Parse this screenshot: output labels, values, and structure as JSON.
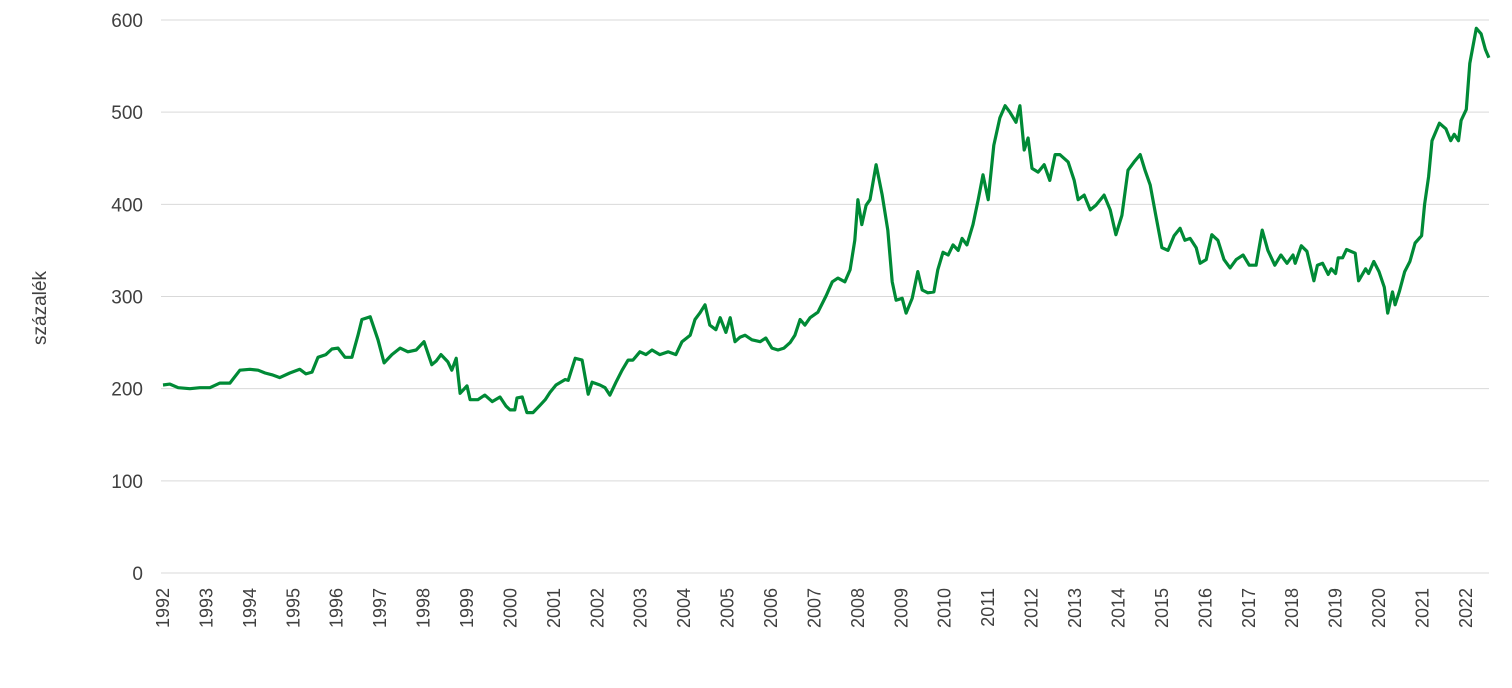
{
  "chart_data": {
    "type": "line",
    "title": "",
    "xlabel": "",
    "ylabel": "százalék",
    "ylim": [
      0,
      600
    ],
    "xlim": [
      1992,
      2022.55
    ],
    "grid": true,
    "legend": "none",
    "yticks": [
      "0",
      "100",
      "200",
      "300",
      "400",
      "500",
      "600"
    ],
    "xticks": [
      "1992",
      "1993",
      "1994",
      "1995",
      "1996",
      "1997",
      "1998",
      "1999",
      "2000",
      "2001",
      "2002",
      "2003",
      "2004",
      "2005",
      "2006",
      "2007",
      "2008",
      "2009",
      "2010",
      "2011",
      "2012",
      "2013",
      "2014",
      "2015",
      "2016",
      "2017",
      "2018",
      "2019",
      "2020",
      "2021",
      "2022"
    ],
    "colors": {
      "line": "#008a36",
      "grid": "#d9d9d9",
      "text": "#404040"
    },
    "series": [
      {
        "name": "százalék",
        "points": [
          [
            1992.0,
            204
          ],
          [
            1992.16,
            205
          ],
          [
            1992.35,
            201
          ],
          [
            1992.62,
            200
          ],
          [
            1992.85,
            201
          ],
          [
            1993.08,
            201
          ],
          [
            1993.31,
            206
          ],
          [
            1993.54,
            206
          ],
          [
            1993.77,
            220
          ],
          [
            1994.0,
            221
          ],
          [
            1994.19,
            220
          ],
          [
            1994.35,
            217
          ],
          [
            1994.51,
            215
          ],
          [
            1994.69,
            212
          ],
          [
            1994.92,
            217
          ],
          [
            1995.15,
            221
          ],
          [
            1995.29,
            216
          ],
          [
            1995.43,
            218
          ],
          [
            1995.57,
            234
          ],
          [
            1995.75,
            237
          ],
          [
            1995.89,
            243
          ],
          [
            1996.03,
            244
          ],
          [
            1996.19,
            234
          ],
          [
            1996.35,
            234
          ],
          [
            1996.49,
            258
          ],
          [
            1996.58,
            275
          ],
          [
            1996.77,
            278
          ],
          [
            1996.95,
            253
          ],
          [
            1997.09,
            228
          ],
          [
            1997.27,
            237
          ],
          [
            1997.46,
            244
          ],
          [
            1997.64,
            240
          ],
          [
            1997.83,
            242
          ],
          [
            1998.01,
            251
          ],
          [
            1998.19,
            226
          ],
          [
            1998.29,
            230
          ],
          [
            1998.4,
            237
          ],
          [
            1998.56,
            229
          ],
          [
            1998.65,
            220
          ],
          [
            1998.75,
            233
          ],
          [
            1998.84,
            195
          ],
          [
            1999.0,
            203
          ],
          [
            1999.07,
            188
          ],
          [
            1999.25,
            188
          ],
          [
            1999.41,
            193
          ],
          [
            1999.58,
            186
          ],
          [
            1999.76,
            191
          ],
          [
            1999.9,
            181
          ],
          [
            1999.99,
            177
          ],
          [
            2000.1,
            177
          ],
          [
            2000.15,
            190
          ],
          [
            2000.27,
            191
          ],
          [
            2000.38,
            174
          ],
          [
            2000.52,
            174
          ],
          [
            2000.68,
            182
          ],
          [
            2000.8,
            188
          ],
          [
            2000.91,
            196
          ],
          [
            2001.05,
            204
          ],
          [
            2001.26,
            210
          ],
          [
            2001.33,
            209
          ],
          [
            2001.49,
            233
          ],
          [
            2001.65,
            231
          ],
          [
            2001.79,
            194
          ],
          [
            2001.88,
            207
          ],
          [
            2002.06,
            204
          ],
          [
            2002.18,
            201
          ],
          [
            2002.29,
            193
          ],
          [
            2002.43,
            207
          ],
          [
            2002.57,
            220
          ],
          [
            2002.71,
            231
          ],
          [
            2002.82,
            231
          ],
          [
            2002.98,
            240
          ],
          [
            2003.12,
            237
          ],
          [
            2003.26,
            242
          ],
          [
            2003.44,
            237
          ],
          [
            2003.63,
            240
          ],
          [
            2003.81,
            237
          ],
          [
            2003.95,
            251
          ],
          [
            2004.14,
            258
          ],
          [
            2004.25,
            275
          ],
          [
            2004.36,
            282
          ],
          [
            2004.48,
            291
          ],
          [
            2004.59,
            269
          ],
          [
            2004.73,
            264
          ],
          [
            2004.83,
            277
          ],
          [
            2004.96,
            261
          ],
          [
            2005.06,
            277
          ],
          [
            2005.17,
            251
          ],
          [
            2005.29,
            256
          ],
          [
            2005.4,
            258
          ],
          [
            2005.56,
            253
          ],
          [
            2005.75,
            251
          ],
          [
            2005.88,
            255
          ],
          [
            2006.02,
            244
          ],
          [
            2006.16,
            242
          ],
          [
            2006.3,
            244
          ],
          [
            2006.44,
            250
          ],
          [
            2006.55,
            258
          ],
          [
            2006.67,
            275
          ],
          [
            2006.78,
            269
          ],
          [
            2006.9,
            277
          ],
          [
            2007.08,
            283
          ],
          [
            2007.27,
            301
          ],
          [
            2007.41,
            316
          ],
          [
            2007.54,
            320
          ],
          [
            2007.7,
            316
          ],
          [
            2007.82,
            329
          ],
          [
            2007.93,
            361
          ],
          [
            2008.0,
            405
          ],
          [
            2008.09,
            378
          ],
          [
            2008.19,
            399
          ],
          [
            2008.28,
            405
          ],
          [
            2008.42,
            443
          ],
          [
            2008.56,
            410
          ],
          [
            2008.69,
            372
          ],
          [
            2008.79,
            316
          ],
          [
            2008.88,
            296
          ],
          [
            2009.02,
            298
          ],
          [
            2009.11,
            282
          ],
          [
            2009.25,
            298
          ],
          [
            2009.38,
            327
          ],
          [
            2009.48,
            307
          ],
          [
            2009.61,
            304
          ],
          [
            2009.75,
            305
          ],
          [
            2009.84,
            329
          ],
          [
            2009.96,
            348
          ],
          [
            2010.08,
            345
          ],
          [
            2010.19,
            356
          ],
          [
            2010.31,
            350
          ],
          [
            2010.4,
            363
          ],
          [
            2010.51,
            356
          ],
          [
            2010.65,
            378
          ],
          [
            2010.77,
            405
          ],
          [
            2010.88,
            432
          ],
          [
            2011.0,
            405
          ],
          [
            2011.13,
            464
          ],
          [
            2011.27,
            494
          ],
          [
            2011.39,
            507
          ],
          [
            2011.5,
            500
          ],
          [
            2011.64,
            489
          ],
          [
            2011.73,
            507
          ],
          [
            2011.83,
            459
          ],
          [
            2011.92,
            472
          ],
          [
            2012.01,
            439
          ],
          [
            2012.15,
            435
          ],
          [
            2012.29,
            443
          ],
          [
            2012.42,
            426
          ],
          [
            2012.54,
            454
          ],
          [
            2012.65,
            454
          ],
          [
            2012.84,
            446
          ],
          [
            2012.98,
            426
          ],
          [
            2013.07,
            405
          ],
          [
            2013.21,
            410
          ],
          [
            2013.35,
            394
          ],
          [
            2013.48,
            399
          ],
          [
            2013.67,
            410
          ],
          [
            2013.81,
            394
          ],
          [
            2013.94,
            367
          ],
          [
            2014.08,
            388
          ],
          [
            2014.22,
            437
          ],
          [
            2014.36,
            446
          ],
          [
            2014.5,
            454
          ],
          [
            2014.61,
            437
          ],
          [
            2014.73,
            421
          ],
          [
            2014.86,
            388
          ],
          [
            2015.0,
            353
          ],
          [
            2015.14,
            350
          ],
          [
            2015.28,
            366
          ],
          [
            2015.42,
            374
          ],
          [
            2015.53,
            361
          ],
          [
            2015.65,
            363
          ],
          [
            2015.79,
            353
          ],
          [
            2015.88,
            336
          ],
          [
            2016.02,
            340
          ],
          [
            2016.15,
            367
          ],
          [
            2016.29,
            361
          ],
          [
            2016.43,
            340
          ],
          [
            2016.57,
            331
          ],
          [
            2016.71,
            340
          ],
          [
            2016.87,
            345
          ],
          [
            2017.01,
            334
          ],
          [
            2017.17,
            334
          ],
          [
            2017.31,
            372
          ],
          [
            2017.44,
            350
          ],
          [
            2017.6,
            334
          ],
          [
            2017.74,
            345
          ],
          [
            2017.88,
            336
          ],
          [
            2018.02,
            345
          ],
          [
            2018.07,
            336
          ],
          [
            2018.21,
            355
          ],
          [
            2018.34,
            349
          ],
          [
            2018.5,
            317
          ],
          [
            2018.58,
            334
          ],
          [
            2018.7,
            336
          ],
          [
            2018.83,
            324
          ],
          [
            2018.9,
            330
          ],
          [
            2019.0,
            325
          ],
          [
            2019.06,
            342
          ],
          [
            2019.16,
            342
          ],
          [
            2019.25,
            351
          ],
          [
            2019.45,
            347
          ],
          [
            2019.53,
            317
          ],
          [
            2019.69,
            330
          ],
          [
            2019.76,
            325
          ],
          [
            2019.88,
            338
          ],
          [
            2020.0,
            327
          ],
          [
            2020.12,
            310
          ],
          [
            2020.2,
            282
          ],
          [
            2020.31,
            305
          ],
          [
            2020.37,
            291
          ],
          [
            2020.47,
            306
          ],
          [
            2020.59,
            327
          ],
          [
            2020.71,
            338
          ],
          [
            2020.83,
            358
          ],
          [
            2020.98,
            366
          ],
          [
            2021.05,
            400
          ],
          [
            2021.14,
            430
          ],
          [
            2021.22,
            469
          ],
          [
            2021.39,
            488
          ],
          [
            2021.54,
            482
          ],
          [
            2021.65,
            469
          ],
          [
            2021.73,
            476
          ],
          [
            2021.83,
            469
          ],
          [
            2021.89,
            491
          ],
          [
            2022.01,
            503
          ],
          [
            2022.09,
            553
          ],
          [
            2022.24,
            591
          ],
          [
            2022.35,
            585
          ],
          [
            2022.45,
            568
          ],
          [
            2022.53,
            559
          ]
        ]
      }
    ]
  }
}
